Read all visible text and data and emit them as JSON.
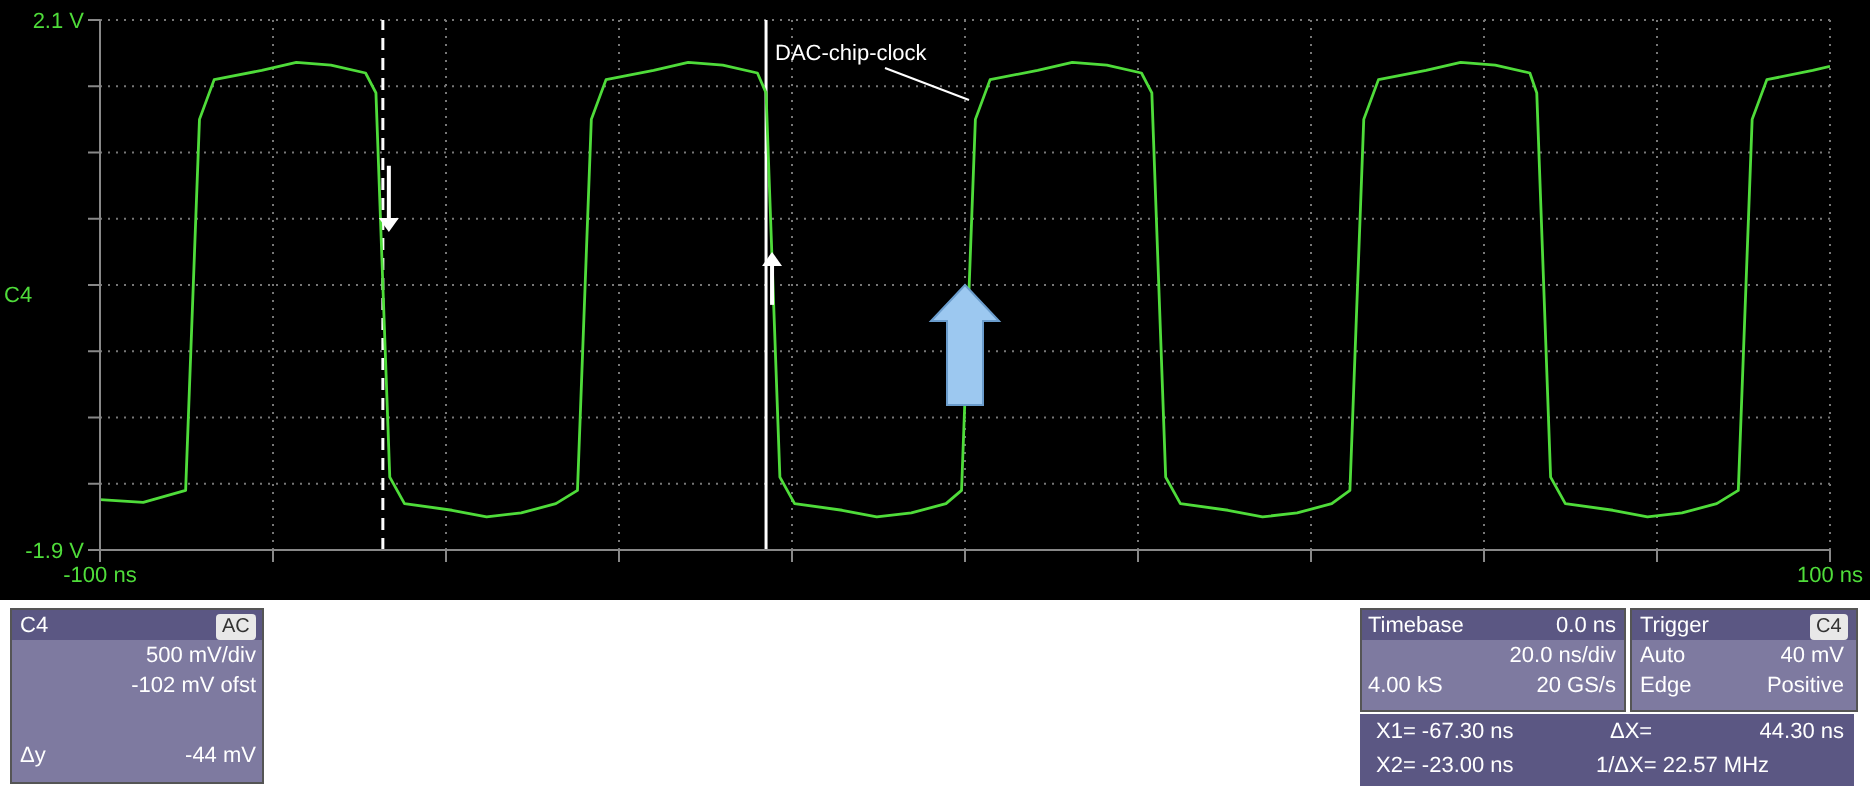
{
  "chart_data": {
    "type": "line",
    "x": [
      -100,
      -95,
      -90.1,
      -88.5,
      -86.8,
      -81.3,
      -77.3,
      -73.3,
      -69.3,
      -68.1,
      -66.5,
      -64.8,
      -59.3,
      -55.3,
      -51.3,
      -47.3,
      -44.8,
      -43.2,
      -41.5,
      -36,
      -32,
      -28,
      -24,
      -23.0,
      -21.4,
      -19.7,
      -14.2,
      -10.2,
      -6.2,
      -2.2,
      -0.4,
      1.2,
      2.9,
      8.4,
      12.4,
      16.4,
      20.4,
      21.6,
      23.2,
      24.9,
      30.4,
      34.4,
      38.4,
      42.4,
      44.5,
      46.1,
      47.8,
      53.3,
      57.3,
      61.3,
      65.3,
      66.1,
      67.7,
      69.4,
      74.9,
      78.9,
      82.9,
      86.9,
      89.4,
      91.0,
      92.7,
      98,
      100
    ],
    "series": [
      {
        "color": "#4fdc3a",
        "values": [
          -1.52,
          -1.54,
          -1.45,
          1.35,
          1.65,
          1.72,
          1.78,
          1.76,
          1.7,
          1.55,
          -1.35,
          -1.55,
          -1.6,
          -1.65,
          -1.62,
          -1.55,
          -1.45,
          1.35,
          1.65,
          1.72,
          1.78,
          1.76,
          1.7,
          1.55,
          -1.35,
          -1.55,
          -1.6,
          -1.65,
          -1.62,
          -1.55,
          -1.45,
          1.35,
          1.65,
          1.72,
          1.78,
          1.76,
          1.7,
          1.55,
          -1.35,
          -1.55,
          -1.6,
          -1.65,
          -1.62,
          -1.55,
          -1.45,
          1.35,
          1.65,
          1.72,
          1.78,
          1.76,
          1.7,
          1.55,
          -1.35,
          -1.55,
          -1.6,
          -1.65,
          -1.62,
          -1.55,
          -1.45,
          1.35,
          1.65,
          1.72,
          1.75
        ]
      }
    ],
    "xlim": [
      -100,
      100
    ],
    "xticks": [
      {
        "value": -100,
        "label": "-100 ns"
      },
      {
        "value": -80,
        "label": null
      },
      {
        "value": -60,
        "label": null
      },
      {
        "value": -40,
        "label": null
      },
      {
        "value": -20,
        "label": null
      },
      {
        "value": 0,
        "label": null
      },
      {
        "value": 20,
        "label": null
      },
      {
        "value": 40,
        "label": null
      },
      {
        "value": 60,
        "label": null
      },
      {
        "value": 80,
        "label": null
      },
      {
        "value": 100,
        "label": "100 ns"
      }
    ],
    "ylim": [
      -1.9,
      2.1
    ],
    "yticks": [
      {
        "value": -1.9,
        "label": "-1.9 V"
      },
      {
        "value": -1.4,
        "label": null
      },
      {
        "value": -0.9,
        "label": null
      },
      {
        "value": -0.4,
        "label": null
      },
      {
        "value": 0.1,
        "label": null
      },
      {
        "value": 0.6,
        "label": null
      },
      {
        "value": 1.1,
        "label": null
      },
      {
        "value": 1.6,
        "label": null
      },
      {
        "value": 2.1,
        "label": "2.1 V"
      }
    ],
    "grid": true,
    "line_style": "solid",
    "ref_lines": [
      {
        "axis": "x",
        "value": -67.3,
        "color": "#ffffff",
        "line_style": "dashed"
      },
      {
        "axis": "x",
        "value": -23.0,
        "color": "#ffffff",
        "line_style": "solid"
      }
    ],
    "annotations": [
      "DAC-chip-clock",
      "C4",
      "C4",
      "AC",
      "500 mV/div",
      "-102 mV ofst",
      "Δy",
      "-44 mV",
      "Timebase",
      "0.0 ns",
      "20.0 ns/div",
      "4.00 kS",
      "20 GS/s",
      "Trigger",
      "C4",
      "Auto",
      "40 mV",
      "Edge",
      "Positive",
      "X1= -67.30 ns",
      "ΔX=",
      "44.30 ns",
      "X2= -23.00 ns",
      "1/ΔX= 22.57 MHz"
    ]
  }
}
